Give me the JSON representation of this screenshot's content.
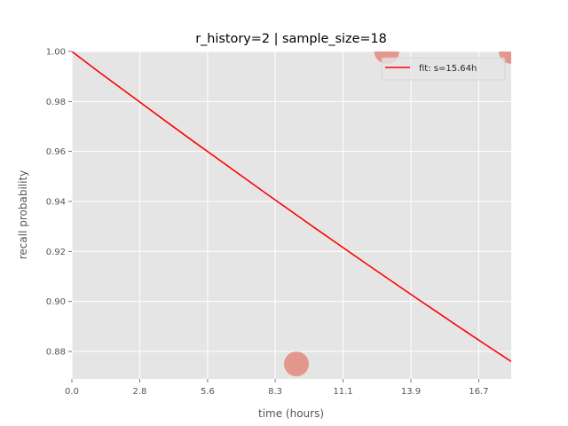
{
  "chart_data": {
    "type": "scatter",
    "title": "r_history=2 | sample_size=18",
    "xlabel": "time (hours)",
    "ylabel": "recall probability",
    "xlim": [
      0,
      18
    ],
    "ylim": [
      0.869,
      1.0
    ],
    "x_ticks": [
      "0.0",
      "2.8",
      "5.6",
      "8.3",
      "11.1",
      "13.9",
      "16.7"
    ],
    "x_tick_values": [
      0.0,
      2.78,
      5.56,
      8.33,
      11.11,
      13.89,
      16.67
    ],
    "y_ticks": [
      "0.88",
      "0.90",
      "0.92",
      "0.94",
      "0.96",
      "0.98",
      "1.00"
    ],
    "y_tick_values": [
      0.88,
      0.9,
      0.92,
      0.94,
      0.96,
      0.98,
      1.0
    ],
    "grid": true,
    "legend_position": "top-right",
    "series": [
      {
        "name": "fit: s=15.64h",
        "kind": "line",
        "color": "#ff0000",
        "half_life_hours": 15.64,
        "x": [
          0,
          1,
          2,
          3,
          4,
          5,
          6,
          7,
          8,
          9,
          10,
          11,
          12,
          13,
          14,
          15,
          16,
          17,
          18
        ],
        "y": [
          1.0,
          0.9926,
          0.9854,
          0.9782,
          0.971,
          0.9639,
          0.9569,
          0.9499,
          0.9429,
          0.936,
          0.9291,
          0.9223,
          0.9155,
          0.9088,
          0.9021,
          0.8955,
          0.8889,
          0.8824,
          0.876
        ]
      },
      {
        "kind": "scatter",
        "color": "#e24a33",
        "points": [
          {
            "x": 9.2,
            "y": 0.875
          },
          {
            "x": 12.9,
            "y": 1.0
          },
          {
            "x": 18.0,
            "y": 1.0
          }
        ]
      }
    ]
  },
  "colors": {
    "axes_bg": "#e5e5e5",
    "grid": "#ffffff",
    "fit_line": "#ff0000",
    "points": "#e24a33"
  }
}
